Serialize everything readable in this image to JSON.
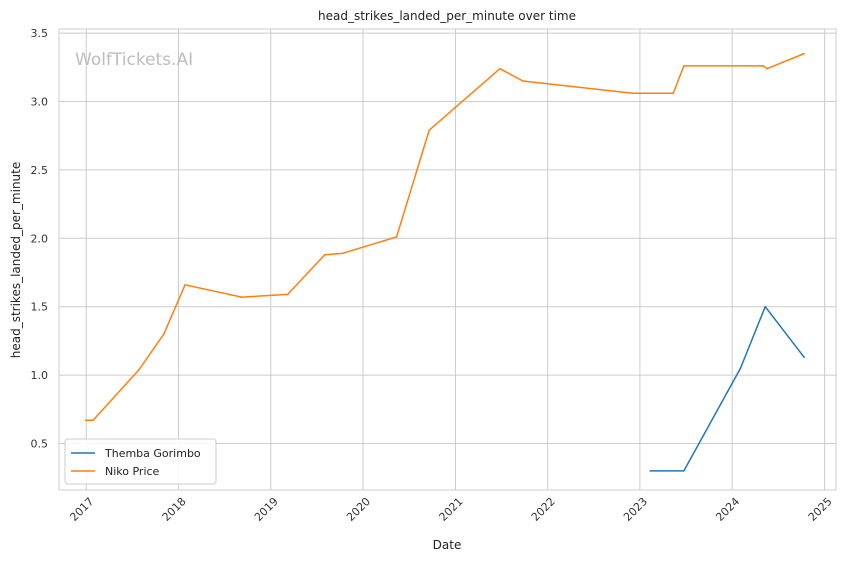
{
  "chart_data": {
    "type": "line",
    "title": "head_strikes_landed_per_minute over time",
    "xlabel": "Date",
    "ylabel": "head_strikes_landed_per_minute",
    "watermark": "WolfTickets.AI",
    "x_ticks": [
      "2017",
      "2018",
      "2019",
      "2020",
      "2021",
      "2022",
      "2023",
      "2024",
      "2025"
    ],
    "y_ticks": [
      "0.5",
      "1.0",
      "1.5",
      "2.0",
      "2.5",
      "3.0",
      "3.5"
    ],
    "xlim": [
      "2016-09-15",
      "2025-02-15"
    ],
    "ylim": [
      0.16,
      3.53
    ],
    "grid": true,
    "legend_position": "lower-left",
    "series": [
      {
        "name": "Themba Gorimbo",
        "color": "#1f77b4",
        "points": [
          {
            "x": "2023-02-11",
            "y": 0.3
          },
          {
            "x": "2023-06-24",
            "y": 0.3
          },
          {
            "x": "2024-02-03",
            "y": 1.05
          },
          {
            "x": "2024-05-11",
            "y": 1.5
          },
          {
            "x": "2024-10-12",
            "y": 1.13
          }
        ]
      },
      {
        "name": "Niko Price",
        "color": "#ff7f0e",
        "points": [
          {
            "x": "2016-12-30",
            "y": 0.67
          },
          {
            "x": "2017-01-28",
            "y": 0.67
          },
          {
            "x": "2017-07-29",
            "y": 1.04
          },
          {
            "x": "2017-11-04",
            "y": 1.3
          },
          {
            "x": "2018-01-27",
            "y": 1.66
          },
          {
            "x": "2018-09-08",
            "y": 1.57
          },
          {
            "x": "2019-03-09",
            "y": 1.59
          },
          {
            "x": "2019-08-03",
            "y": 1.88
          },
          {
            "x": "2019-10-12",
            "y": 1.89
          },
          {
            "x": "2020-05-13",
            "y": 2.01
          },
          {
            "x": "2020-09-19",
            "y": 2.79
          },
          {
            "x": "2021-06-26",
            "y": 3.24
          },
          {
            "x": "2021-09-25",
            "y": 3.15
          },
          {
            "x": "2022-12-03",
            "y": 3.06
          },
          {
            "x": "2023-05-13",
            "y": 3.06
          },
          {
            "x": "2023-06-24",
            "y": 3.26
          },
          {
            "x": "2024-05-04",
            "y": 3.26
          },
          {
            "x": "2024-05-18",
            "y": 3.24
          },
          {
            "x": "2024-10-12",
            "y": 3.35
          }
        ]
      }
    ]
  }
}
